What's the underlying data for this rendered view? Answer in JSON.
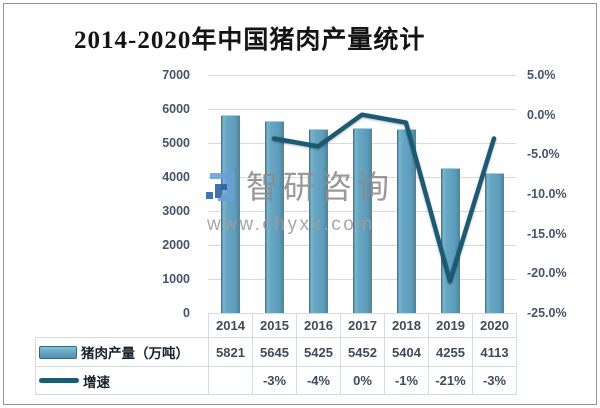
{
  "title": "2014-2020年中国猪肉产量统计",
  "watermark": {
    "brand": "智研咨询",
    "site": "www.chyxx.com",
    "logo_light_blue": "#6C9FD8",
    "logo_dark_blue": "#2B5FA6"
  },
  "chart_data": {
    "type": "bar",
    "combo": "bar+line",
    "title": "2014-2020年中国猪肉产量统计",
    "categories": [
      "2014",
      "2015",
      "2016",
      "2017",
      "2018",
      "2019",
      "2020"
    ],
    "series": [
      {
        "name": "猪肉产量（万吨）",
        "chart_type": "bar",
        "axis": "left",
        "values": [
          5821,
          5645,
          5425,
          5452,
          5404,
          4255,
          4113
        ],
        "display": [
          "5821",
          "5645",
          "5425",
          "5452",
          "5404",
          "4255",
          "4113"
        ]
      },
      {
        "name": "增速",
        "chart_type": "line",
        "axis": "right",
        "values": [
          null,
          -3,
          -4,
          0,
          -1,
          -21,
          -3
        ],
        "display": [
          "",
          "-3%",
          "-4%",
          "0%",
          "-1%",
          "-21%",
          "-3%"
        ]
      }
    ],
    "left_axis": {
      "min": 0,
      "max": 7000,
      "step": 1000,
      "tick_labels": [
        "7000",
        "6000",
        "5000",
        "4000",
        "3000",
        "2000",
        "1000",
        "0"
      ]
    },
    "right_axis": {
      "min": -25,
      "max": 5,
      "step": 5,
      "tick_labels": [
        "5.0%",
        "0.0%",
        "-5.0%",
        "-10.0%",
        "-15.0%",
        "-20.0%",
        "-25.0%"
      ]
    },
    "grid": true,
    "legend_position": "bottom-table"
  },
  "colors": {
    "bar_fill": "#5E9DBB",
    "bar_edge_dark": "#3E7D98",
    "line": "#1A5A73",
    "axis_text": "#44546A",
    "gridline": "#DADADA",
    "table_border": "#D4DAE0",
    "frame_border": "#949494",
    "watermark_text": "#8C8C8C"
  }
}
